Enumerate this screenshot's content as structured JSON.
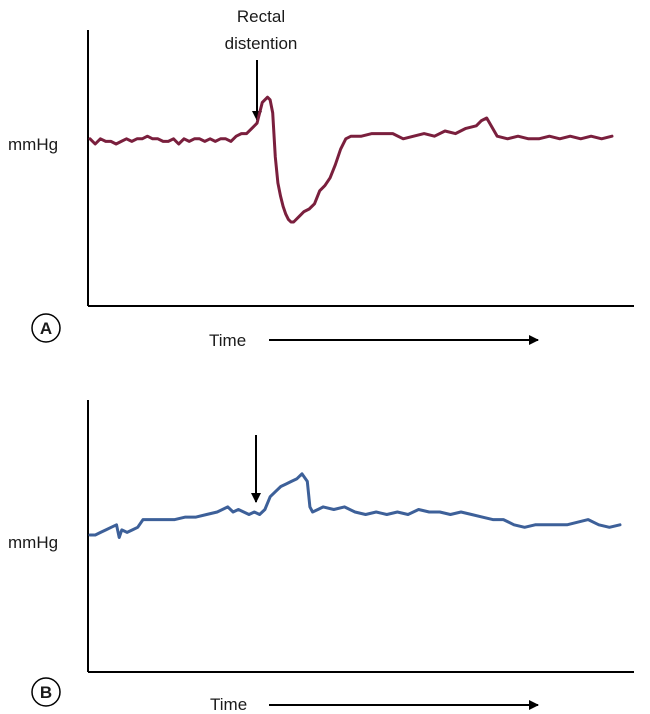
{
  "chart_data": [
    {
      "type": "line",
      "panel_label": "A",
      "ylabel": "mmHg",
      "xlabel": "Time",
      "annotation": "Rectal\ndistention",
      "annotation_x": 0.33,
      "color": "#7a1f3d",
      "series": [
        {
          "x": [
            0,
            0.01,
            0.02,
            0.03,
            0.04,
            0.05,
            0.06,
            0.07,
            0.08,
            0.09,
            0.1,
            0.11,
            0.12,
            0.13,
            0.14,
            0.15,
            0.16,
            0.17,
            0.18,
            0.19,
            0.2,
            0.21,
            0.22,
            0.23,
            0.24,
            0.25,
            0.26,
            0.27,
            0.28,
            0.29,
            0.3,
            0.31,
            0.32,
            0.33,
            0.34,
            0.345,
            0.35,
            0.355,
            0.36,
            0.365,
            0.37,
            0.375,
            0.38,
            0.385,
            0.39,
            0.4,
            0.41,
            0.42,
            0.43,
            0.44,
            0.45,
            0.46,
            0.47,
            0.48,
            0.49,
            0.5,
            0.52,
            0.54,
            0.56,
            0.58,
            0.6,
            0.62,
            0.64,
            0.66,
            0.68,
            0.7,
            0.72,
            0.74,
            0.75,
            0.76,
            0.78,
            0.8,
            0.82,
            0.84,
            0.86,
            0.88,
            0.9,
            0.92,
            0.94,
            0.96,
            0.98,
            1.0
          ],
          "y": [
            0.62,
            0.6,
            0.62,
            0.61,
            0.61,
            0.6,
            0.61,
            0.62,
            0.61,
            0.62,
            0.62,
            0.63,
            0.62,
            0.62,
            0.61,
            0.61,
            0.62,
            0.6,
            0.62,
            0.61,
            0.62,
            0.62,
            0.61,
            0.62,
            0.61,
            0.62,
            0.62,
            0.61,
            0.63,
            0.64,
            0.64,
            0.66,
            0.68,
            0.76,
            0.78,
            0.77,
            0.72,
            0.55,
            0.45,
            0.4,
            0.36,
            0.33,
            0.31,
            0.3,
            0.3,
            0.32,
            0.34,
            0.35,
            0.37,
            0.42,
            0.44,
            0.47,
            0.52,
            0.58,
            0.62,
            0.63,
            0.63,
            0.64,
            0.64,
            0.64,
            0.62,
            0.63,
            0.64,
            0.63,
            0.65,
            0.64,
            0.66,
            0.67,
            0.69,
            0.7,
            0.63,
            0.62,
            0.63,
            0.62,
            0.62,
            0.63,
            0.62,
            0.63,
            0.62,
            0.63,
            0.62,
            0.63
          ]
        }
      ]
    },
    {
      "type": "line",
      "panel_label": "B",
      "ylabel": "mmHg",
      "xlabel": "Time",
      "annotation": "",
      "annotation_x": 0.32,
      "color": "#3d6099",
      "series": [
        {
          "x": [
            0,
            0.01,
            0.02,
            0.03,
            0.04,
            0.05,
            0.055,
            0.06,
            0.07,
            0.08,
            0.09,
            0.1,
            0.12,
            0.14,
            0.16,
            0.18,
            0.2,
            0.22,
            0.24,
            0.26,
            0.27,
            0.28,
            0.29,
            0.3,
            0.31,
            0.32,
            0.33,
            0.34,
            0.35,
            0.36,
            0.37,
            0.38,
            0.39,
            0.4,
            0.41,
            0.415,
            0.42,
            0.43,
            0.44,
            0.46,
            0.48,
            0.5,
            0.52,
            0.54,
            0.56,
            0.58,
            0.6,
            0.62,
            0.64,
            0.66,
            0.68,
            0.7,
            0.72,
            0.74,
            0.76,
            0.78,
            0.8,
            0.82,
            0.84,
            0.86,
            0.88,
            0.9,
            0.92,
            0.94,
            0.96,
            0.98,
            1.0
          ],
          "y": [
            0.51,
            0.51,
            0.52,
            0.53,
            0.54,
            0.55,
            0.5,
            0.53,
            0.52,
            0.53,
            0.54,
            0.57,
            0.57,
            0.57,
            0.57,
            0.58,
            0.58,
            0.59,
            0.6,
            0.62,
            0.6,
            0.61,
            0.6,
            0.59,
            0.6,
            0.59,
            0.61,
            0.66,
            0.68,
            0.7,
            0.71,
            0.72,
            0.73,
            0.75,
            0.72,
            0.62,
            0.6,
            0.61,
            0.62,
            0.61,
            0.62,
            0.6,
            0.59,
            0.6,
            0.59,
            0.6,
            0.59,
            0.61,
            0.6,
            0.6,
            0.59,
            0.6,
            0.59,
            0.58,
            0.57,
            0.57,
            0.55,
            0.54,
            0.55,
            0.55,
            0.55,
            0.55,
            0.56,
            0.57,
            0.55,
            0.54,
            0.55
          ]
        }
      ]
    }
  ]
}
